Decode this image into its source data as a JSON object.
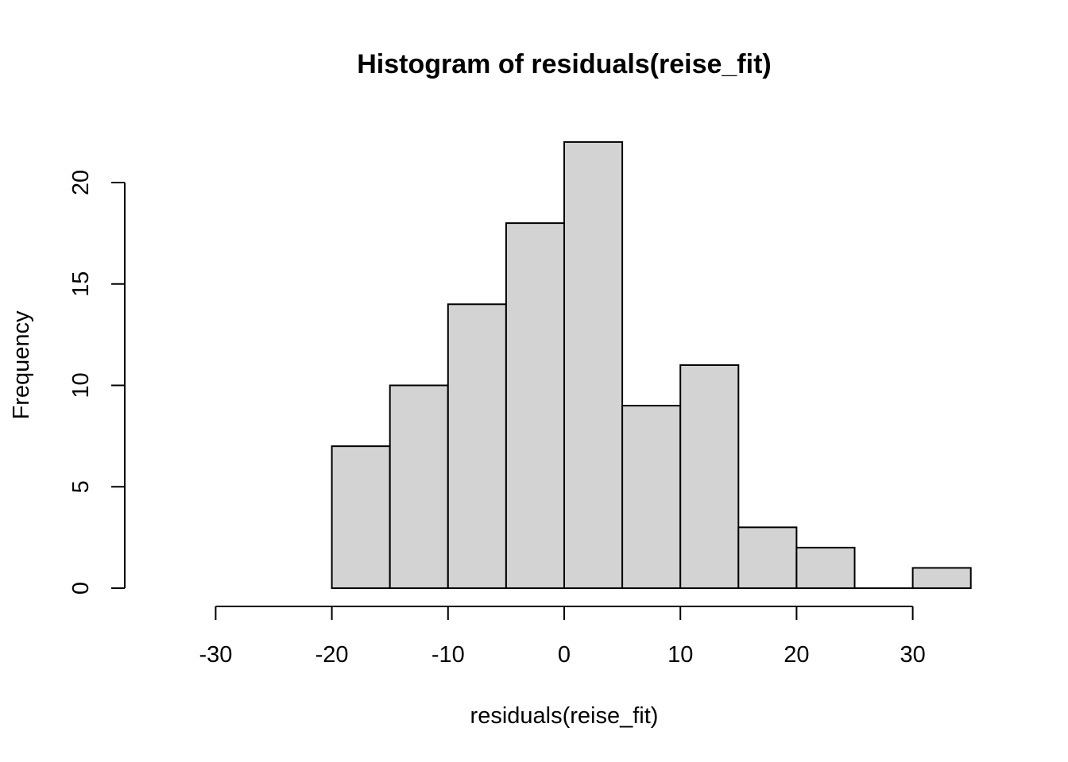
{
  "chart_data": {
    "type": "bar",
    "title": "Histogram of residuals(reise_fit)",
    "xlabel": "residuals(reise_fit)",
    "ylabel": "Frequency",
    "bins": [
      {
        "x0": -20,
        "x1": -15,
        "count": 7
      },
      {
        "x0": -15,
        "x1": -10,
        "count": 10
      },
      {
        "x0": -10,
        "x1": -5,
        "count": 14
      },
      {
        "x0": -5,
        "x1": 0,
        "count": 18
      },
      {
        "x0": 0,
        "x1": 5,
        "count": 22
      },
      {
        "x0": 5,
        "x1": 10,
        "count": 9
      },
      {
        "x0": 10,
        "x1": 15,
        "count": 11
      },
      {
        "x0": 15,
        "x1": 20,
        "count": 3
      },
      {
        "x0": 20,
        "x1": 25,
        "count": 2
      },
      {
        "x0": 25,
        "x1": 30,
        "count": 0
      },
      {
        "x0": 30,
        "x1": 35,
        "count": 1
      }
    ],
    "xticks": [
      -30,
      -20,
      -10,
      0,
      10,
      20,
      30
    ],
    "yticks": [
      0,
      5,
      10,
      15,
      20
    ],
    "xlim": [
      -30,
      30
    ],
    "ylim": [
      0,
      20
    ],
    "grid": false,
    "bar_fill": "#d3d3d3",
    "bar_stroke": "#000000"
  }
}
